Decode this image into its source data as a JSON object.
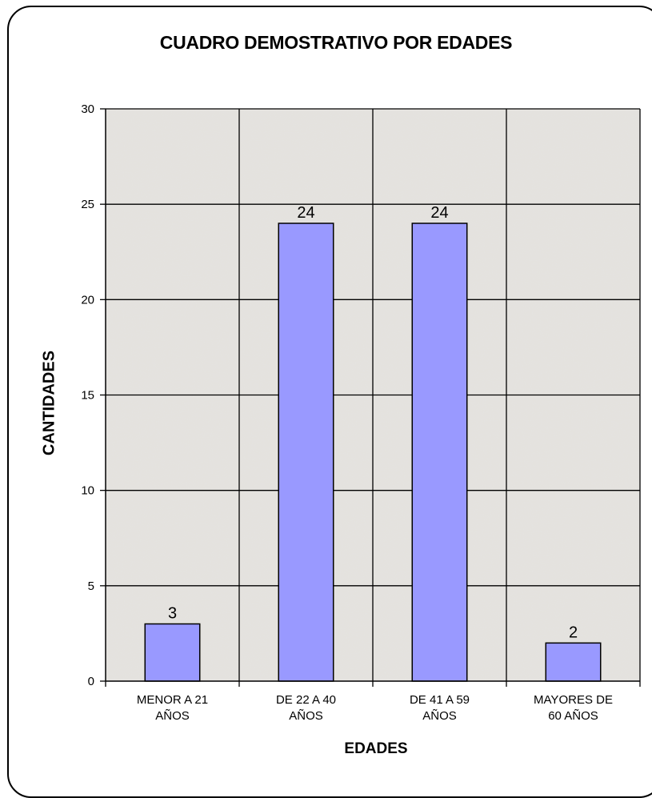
{
  "chart_data": {
    "type": "bar",
    "title": "CUADRO DEMOSTRATIVO POR EDADES",
    "xlabel": "EDADES",
    "ylabel": "CANTIDADES",
    "categories": [
      [
        "MENOR A 21",
        "AÑOS"
      ],
      [
        "DE 22 A 40",
        "AÑOS"
      ],
      [
        "DE 41 A 59",
        "AÑOS"
      ],
      [
        "MAYORES DE",
        "60 AÑOS"
      ]
    ],
    "values": [
      3,
      24,
      24,
      2
    ],
    "data_labels": [
      "3",
      "24",
      "24",
      "2"
    ],
    "ylim": [
      0,
      30
    ],
    "yticks": [
      0,
      5,
      10,
      15,
      20,
      25,
      30
    ],
    "grid": true,
    "bar_color": "#9999FF",
    "bar_border": "#000000",
    "plot_background": "#E4E2DE"
  }
}
